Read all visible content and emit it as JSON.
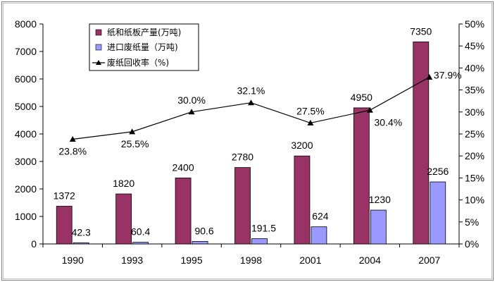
{
  "colors": {
    "paper": "#993366",
    "waste": "#9999ff",
    "rate": "#000000",
    "frame": "#000000",
    "background": "#ffffff"
  },
  "chart_data": {
    "type": "bar",
    "categories": [
      "1990",
      "1993",
      "1995",
      "1998",
      "2001",
      "2004",
      "2007"
    ],
    "series": [
      {
        "name": "纸和纸板产量(万吨)",
        "kind": "bar",
        "axis": "left",
        "values": [
          1372,
          1820,
          2400,
          2780,
          3200,
          4950,
          7350
        ],
        "labels": [
          "1372",
          "1820",
          "2400",
          "2780",
          "3200",
          "4950",
          "7350"
        ]
      },
      {
        "name": "进口废纸量（万吨)",
        "kind": "bar",
        "axis": "left",
        "values": [
          42.3,
          60.4,
          90.6,
          191.5,
          624,
          1230,
          2256
        ],
        "labels": [
          "42.3",
          "60.4",
          "90.6",
          "191.5",
          "624",
          "1230",
          "2256"
        ]
      },
      {
        "name": "废纸回收率（%)",
        "kind": "line",
        "axis": "right",
        "values": [
          23.8,
          25.5,
          30.0,
          32.1,
          27.5,
          30.4,
          37.9
        ],
        "labels": [
          "23.8%",
          "25.5%",
          "30.0%",
          "32.1%",
          "27.5%",
          "30.4%",
          "37.9%"
        ]
      }
    ],
    "y_left": {
      "ylim": [
        0,
        8000
      ],
      "ticks": [
        "0",
        "1000",
        "2000",
        "3000",
        "4000",
        "5000",
        "6000",
        "7000",
        "8000"
      ]
    },
    "y_right": {
      "ylim": [
        0,
        50
      ],
      "ticks": [
        "0%",
        "5%",
        "10%",
        "15%",
        "20%",
        "25%",
        "30%",
        "35%",
        "40%",
        "45%",
        "50%"
      ]
    },
    "grid": false,
    "legend": "top-left"
  }
}
